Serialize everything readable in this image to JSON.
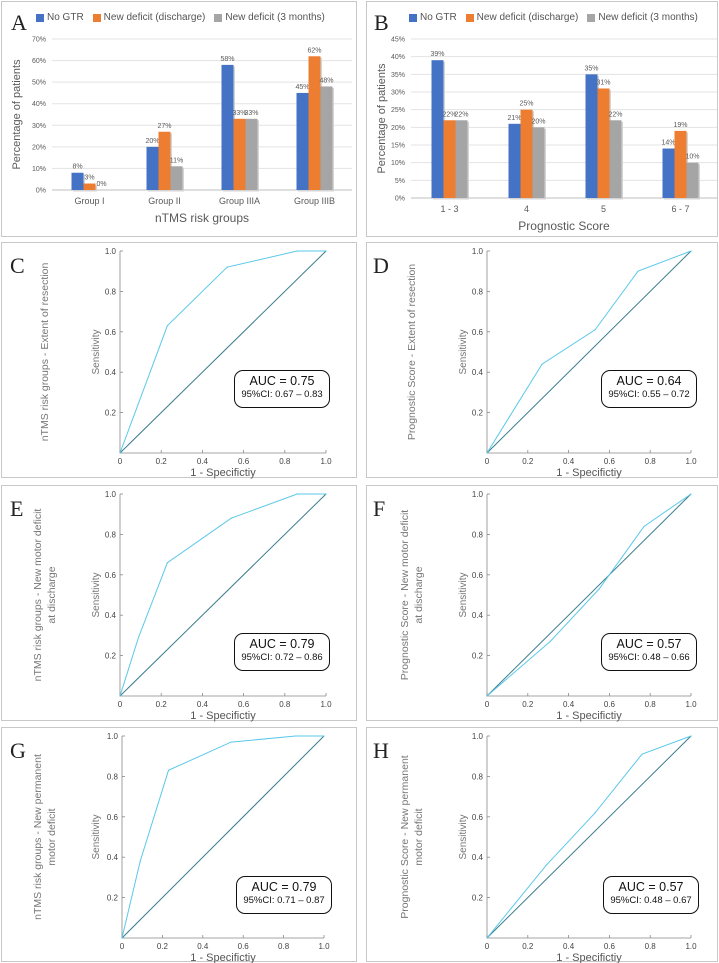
{
  "colors": {
    "no_gtr": "#4472c4",
    "discharge": "#ed7d31",
    "three_months": "#a5a5a5",
    "roc": "#5bc8e8",
    "diag": "#3a7c8c"
  },
  "chart_data": [
    {
      "id": "A",
      "type": "bar",
      "panel_label": "A",
      "xlabel": "nTMS risk groups",
      "ylabel": "Percentage of patients",
      "ylim": [
        0,
        70
      ],
      "yticks": [
        "0%",
        "10%",
        "20%",
        "30%",
        "40%",
        "50%",
        "60%",
        "70%"
      ],
      "ytick_values": [
        0,
        10,
        20,
        30,
        40,
        50,
        60,
        70
      ],
      "categories": [
        "Group I",
        "Group II",
        "Group IIIA",
        "Group IIIB"
      ],
      "series": [
        {
          "name": "No GTR",
          "values": [
            8,
            20,
            58,
            45
          ],
          "labels": [
            "8%",
            "20%",
            "58%",
            "45%"
          ]
        },
        {
          "name": "New deficit (discharge)",
          "values": [
            3,
            27,
            33,
            62
          ],
          "labels": [
            "3%",
            "27%",
            "33%",
            "62%"
          ]
        },
        {
          "name": "New deficit (3 months)",
          "values": [
            0,
            11,
            33,
            48
          ],
          "labels": [
            "0%",
            "11%",
            "33%",
            "48%"
          ]
        }
      ]
    },
    {
      "id": "B",
      "type": "bar",
      "panel_label": "B",
      "xlabel": "Prognostic Score",
      "ylabel": "Percentage of patients",
      "ylim": [
        0,
        45
      ],
      "yticks": [
        "0%",
        "5%",
        "10%",
        "15%",
        "20%",
        "25%",
        "30%",
        "35%",
        "40%",
        "45%"
      ],
      "ytick_values": [
        0,
        5,
        10,
        15,
        20,
        25,
        30,
        35,
        40,
        45
      ],
      "categories": [
        "1 - 3",
        "4",
        "5",
        "6 - 7"
      ],
      "series": [
        {
          "name": "No GTR",
          "values": [
            39,
            21,
            35,
            14
          ],
          "labels": [
            "39%",
            "21%",
            "35%",
            "14%"
          ]
        },
        {
          "name": "New deficit (discharge)",
          "values": [
            22,
            25,
            31,
            19
          ],
          "labels": [
            "22%",
            "25%",
            "31%",
            "19%"
          ]
        },
        {
          "name": "New deficit (3 months)",
          "values": [
            22,
            20,
            22,
            10
          ],
          "labels": [
            "22%",
            "20%",
            "22%",
            "10%"
          ]
        }
      ]
    },
    {
      "id": "C",
      "type": "line",
      "panel_label": "C",
      "xlabel": "1 - Specifictiy",
      "ylabel": "Sensitivity",
      "outer_label": [
        "nTMS risk groups - Extent of resection"
      ],
      "xlim": [
        0,
        1
      ],
      "ylim": [
        0,
        1
      ],
      "xticks": [
        "0",
        "0.2",
        "0.4",
        "0.6",
        "0.8",
        "1.0"
      ],
      "xtick_values": [
        0,
        0.2,
        0.4,
        0.6,
        0.8,
        1.0
      ],
      "yticks": [
        "0.2",
        "0.4",
        "0.6",
        "0.8",
        "1.0"
      ],
      "ytick_values": [
        0.2,
        0.4,
        0.6,
        0.8,
        1.0
      ],
      "x": [
        0,
        0.23,
        0.52,
        0.86,
        1.0
      ],
      "y": [
        0,
        0.63,
        0.92,
        1.0,
        1.0
      ],
      "auc": "AUC = 0.75",
      "ci": "95%CI: 0.67 – 0.83"
    },
    {
      "id": "D",
      "type": "line",
      "panel_label": "D",
      "xlabel": "1 - Specifictiy",
      "ylabel": "Sensitivity",
      "outer_label": [
        "Prognostic Score - Extent of resection"
      ],
      "xlim": [
        0,
        1
      ],
      "ylim": [
        0,
        1
      ],
      "xticks": [
        "0",
        "0.2",
        "0.4",
        "0.6",
        "0.8",
        "1.0"
      ],
      "xtick_values": [
        0,
        0.2,
        0.4,
        0.6,
        0.8,
        1.0
      ],
      "yticks": [
        "0.2",
        "0.4",
        "0.6",
        "0.8",
        "1.0"
      ],
      "ytick_values": [
        0.2,
        0.4,
        0.6,
        0.8,
        1.0
      ],
      "x": [
        0,
        0.27,
        0.53,
        0.74,
        1.0
      ],
      "y": [
        0,
        0.44,
        0.61,
        0.9,
        1.0
      ],
      "auc": "AUC = 0.64",
      "ci": "95%CI: 0.55 – 0.72"
    },
    {
      "id": "E",
      "type": "line",
      "panel_label": "E",
      "xlabel": "1 - Specifictiy",
      "ylabel": "Sensitivity",
      "outer_label": [
        "nTMS risk groups - New motor deficit",
        "at discharge"
      ],
      "xlim": [
        0,
        1
      ],
      "ylim": [
        0,
        1
      ],
      "xticks": [
        "0",
        "0.2",
        "0.4",
        "0.6",
        "0.8",
        "1.0"
      ],
      "xtick_values": [
        0,
        0.2,
        0.4,
        0.6,
        0.8,
        1.0
      ],
      "yticks": [
        "0.2",
        "0.4",
        "0.6",
        "0.8",
        "1.0"
      ],
      "ytick_values": [
        0.2,
        0.4,
        0.6,
        0.8,
        1.0
      ],
      "x": [
        0,
        0.09,
        0.23,
        0.54,
        0.86,
        1.0
      ],
      "y": [
        0,
        0.29,
        0.66,
        0.88,
        1.0,
        1.0
      ],
      "auc": "AUC = 0.79",
      "ci": "95%CI: 0.72 – 0.86"
    },
    {
      "id": "F",
      "type": "line",
      "panel_label": "F",
      "xlabel": "1 - Specifictiy",
      "ylabel": "Sensitivity",
      "outer_label": [
        "Prognostic Score - New motor deficit",
        "at discharge"
      ],
      "xlim": [
        0,
        1
      ],
      "ylim": [
        0,
        1
      ],
      "xticks": [
        "0",
        "0.2",
        "0.4",
        "0.6",
        "0.8",
        "1.0"
      ],
      "xtick_values": [
        0,
        0.2,
        0.4,
        0.6,
        0.8,
        1.0
      ],
      "yticks": [
        "0.2",
        "0.4",
        "0.6",
        "0.8",
        "1.0"
      ],
      "ytick_values": [
        0.2,
        0.4,
        0.6,
        0.8,
        1.0
      ],
      "x": [
        0,
        0.31,
        0.55,
        0.77,
        1.0
      ],
      "y": [
        0,
        0.27,
        0.53,
        0.84,
        1.0
      ],
      "auc": "AUC = 0.57",
      "ci": "95%CI: 0.48 – 0.66"
    },
    {
      "id": "G",
      "type": "line",
      "panel_label": "G",
      "xlabel": "1 - Specifictiy",
      "ylabel": "Sensitivity",
      "outer_label": [
        "nTMS risk groups - New permanent",
        "motor deficit"
      ],
      "xlim": [
        0,
        1
      ],
      "ylim": [
        0,
        1
      ],
      "xticks": [
        "0",
        "0.2",
        "0.4",
        "0.6",
        "0.8",
        "1.0"
      ],
      "xtick_values": [
        0,
        0.2,
        0.4,
        0.6,
        0.8,
        1.0
      ],
      "yticks": [
        "0.2",
        "0.4",
        "0.6",
        "0.8",
        "1.0"
      ],
      "ytick_values": [
        0.2,
        0.4,
        0.6,
        0.8,
        1.0
      ],
      "x": [
        0,
        0.09,
        0.23,
        0.54,
        0.86,
        1.0
      ],
      "y": [
        0,
        0.38,
        0.83,
        0.97,
        1.0,
        1.0
      ],
      "auc": "AUC = 0.79",
      "ci": "95%CI: 0.71 – 0.87"
    },
    {
      "id": "H",
      "type": "line",
      "panel_label": "H",
      "xlabel": "1 - Specifictiy",
      "ylabel": "Sensitivity",
      "outer_label": [
        "Prognostic Score - New permanent",
        "motor deficit"
      ],
      "xlim": [
        0,
        1
      ],
      "ylim": [
        0,
        1
      ],
      "xticks": [
        "0",
        "0.2",
        "0.4",
        "0.6",
        "0.8",
        "1.0"
      ],
      "xtick_values": [
        0,
        0.2,
        0.4,
        0.6,
        0.8,
        1.0
      ],
      "yticks": [
        "0.2",
        "0.4",
        "0.6",
        "0.8",
        "1.0"
      ],
      "ytick_values": [
        0.2,
        0.4,
        0.6,
        0.8,
        1.0
      ],
      "x": [
        0,
        0.29,
        0.53,
        0.76,
        1.0
      ],
      "y": [
        0,
        0.36,
        0.62,
        0.91,
        1.0
      ],
      "auc": "AUC = 0.57",
      "ci": "95%CI: 0.48 – 0.67"
    }
  ]
}
